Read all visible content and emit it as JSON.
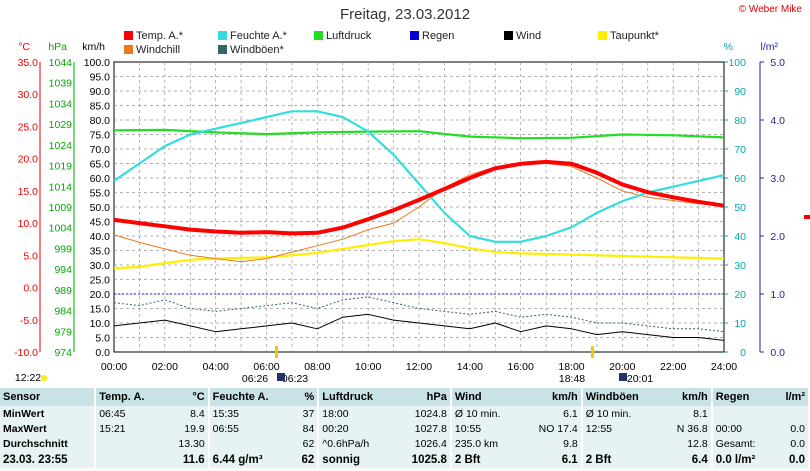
{
  "title": "Freitag, 23.03.2012",
  "copyright": "© Weber Mike",
  "legend": [
    {
      "label": "Temp. A.*",
      "color": "#ff0000"
    },
    {
      "label": "Feuchte A.*",
      "color": "#33dddd"
    },
    {
      "label": "Luftdruck",
      "color": "#22dd22"
    },
    {
      "label": "Regen",
      "color": "#0000dd"
    },
    {
      "label": "Wind",
      "color": "#000000"
    },
    {
      "label": "Taupunkt*",
      "color": "#ffee00"
    },
    {
      "label": "Windchill",
      "color": "#ee7722"
    },
    {
      "label": "Windböen*",
      "color": "#336666"
    }
  ],
  "axis_headers": {
    "temp_unit": "°C",
    "press_unit": "hPa",
    "wind_unit": "km/h",
    "hum_unit": "%",
    "rain_unit": "l/m²"
  },
  "chart_data": {
    "type": "line",
    "xlabel": "",
    "x_ticks": [
      "00:00",
      "02:00",
      "04:00",
      "06:00",
      "08:00",
      "10:00",
      "12:00",
      "14:00",
      "16:00",
      "18:00",
      "20:00",
      "22:00",
      "24:00"
    ],
    "scales": {
      "temp": {
        "ticks": [
          "35.0",
          "30.0",
          "25.0",
          "20.0",
          "15.0",
          "10.0",
          "5.0",
          "0.0",
          "-5.0",
          "-10.0"
        ],
        "min": -10,
        "max": 35
      },
      "pressure": {
        "ticks": [
          "1044",
          "1039",
          "1034",
          "1029",
          "1024",
          "1019",
          "1014",
          "1009",
          "1004",
          "999",
          "994",
          "989",
          "984",
          "979",
          "974"
        ],
        "min": 974,
        "max": 1044
      },
      "wind": {
        "ticks": [
          "100.0",
          "95.0",
          "90.0",
          "85.0",
          "80.0",
          "75.0",
          "70.0",
          "65.0",
          "60.0",
          "55.0",
          "50.0",
          "45.0",
          "40.0",
          "35.0",
          "30.0",
          "25.0",
          "20.0",
          "15.0",
          "10.0",
          "5.0",
          "0.0"
        ],
        "min": 0,
        "max": 100
      },
      "humidity": {
        "ticks": [
          "100",
          "90",
          "80",
          "70",
          "60",
          "50",
          "40",
          "30",
          "20",
          "10",
          "0"
        ],
        "min": 0,
        "max": 100
      },
      "rain": {
        "ticks": [
          "5.0",
          "4.0",
          "3.0",
          "2.0",
          "1.0",
          "0.0"
        ],
        "min": 0,
        "max": 5
      }
    },
    "series": [
      {
        "name": "Temp. A.*",
        "scale": "temp",
        "color": "#ff0000",
        "x": [
          0,
          1,
          2,
          3,
          4,
          5,
          6,
          7,
          8,
          9,
          10,
          11,
          12,
          13,
          14,
          15,
          16,
          17,
          18,
          19,
          20,
          21,
          22,
          23,
          24
        ],
        "values": [
          10.5,
          10.0,
          9.5,
          9.0,
          8.7,
          8.5,
          8.6,
          8.4,
          8.5,
          9.3,
          10.6,
          12.0,
          13.6,
          15.3,
          17.0,
          18.5,
          19.2,
          19.5,
          19.2,
          17.8,
          16.0,
          14.8,
          14.0,
          13.3,
          12.7
        ]
      },
      {
        "name": "Feuchte A.*",
        "scale": "humidity",
        "color": "#33dddd",
        "x": [
          0,
          1,
          2,
          3,
          4,
          5,
          6,
          7,
          8,
          9,
          10,
          11,
          12,
          13,
          14,
          15,
          16,
          17,
          18,
          19,
          20,
          21,
          22,
          23,
          24
        ],
        "values": [
          59,
          65,
          71,
          75,
          77,
          79,
          81,
          83,
          83,
          81,
          76,
          68,
          58,
          48,
          40,
          38,
          38,
          40,
          43,
          48,
          52,
          55,
          57,
          59,
          61
        ]
      },
      {
        "name": "Luftdruck",
        "scale": "pressure",
        "color": "#22dd22",
        "x": [
          0,
          2,
          4,
          6,
          8,
          10,
          12,
          14,
          16,
          18,
          20,
          22,
          24
        ],
        "values": [
          1027.5,
          1027.6,
          1027.0,
          1026.6,
          1027.0,
          1027.2,
          1027.3,
          1026.0,
          1025.6,
          1025.7,
          1026.5,
          1026.3,
          1025.8
        ]
      },
      {
        "name": "Taupunkt*",
        "scale": "temp",
        "color": "#ffee00",
        "x": [
          0,
          1,
          2,
          3,
          4,
          5,
          6,
          7,
          8,
          9,
          10,
          11,
          12,
          13,
          14,
          15,
          16,
          17,
          18,
          19,
          20,
          21,
          22,
          23,
          24
        ],
        "values": [
          3.0,
          3.2,
          3.8,
          4.3,
          4.5,
          4.6,
          4.7,
          5.0,
          5.4,
          6.0,
          6.6,
          7.2,
          7.5,
          6.9,
          6.1,
          5.5,
          5.3,
          5.2,
          5.1,
          5.0,
          4.9,
          4.8,
          4.7,
          4.6,
          4.5
        ]
      },
      {
        "name": "Windchill",
        "scale": "temp",
        "color": "#ee7722",
        "x": [
          0,
          1,
          2,
          3,
          4,
          5,
          6,
          7,
          8,
          9,
          10,
          11,
          12,
          13,
          14,
          15,
          16,
          17,
          18,
          19,
          20,
          21,
          22,
          23,
          24
        ],
        "values": [
          8.2,
          7.0,
          6.0,
          5.0,
          4.5,
          4.0,
          4.5,
          5.5,
          6.5,
          7.5,
          9.0,
          10.0,
          12.5,
          15.5,
          17.5,
          18.7,
          19.0,
          19.3,
          18.8,
          17.0,
          15.0,
          14.0,
          13.5,
          13.0,
          12.7
        ]
      },
      {
        "name": "Wind",
        "scale": "wind",
        "color": "#000000",
        "x": [
          0,
          1,
          2,
          3,
          4,
          5,
          6,
          7,
          8,
          9,
          10,
          11,
          12,
          13,
          14,
          15,
          16,
          17,
          18,
          19,
          20,
          21,
          22,
          23,
          24
        ],
        "values": [
          9,
          10,
          11,
          9,
          7,
          8,
          9,
          10,
          8,
          12,
          13,
          11,
          10,
          9,
          8,
          10,
          7,
          9,
          8,
          6,
          7,
          6,
          5,
          5,
          4
        ]
      },
      {
        "name": "Windböen*",
        "scale": "wind",
        "color": "#336666",
        "x": [
          0,
          1,
          2,
          3,
          4,
          5,
          6,
          7,
          8,
          9,
          10,
          11,
          12,
          13,
          14,
          15,
          16,
          17,
          18,
          19,
          20,
          21,
          22,
          23,
          24
        ],
        "values": [
          17,
          16,
          18,
          15,
          14,
          15,
          16,
          17,
          15,
          18,
          19,
          17,
          15,
          14,
          13,
          14,
          12,
          13,
          12,
          10,
          10,
          9,
          8,
          8,
          7
        ]
      }
    ]
  },
  "sun": {
    "sunrise": "06:26",
    "sunset": "18:48",
    "moonset": "06:23",
    "moonrise": "20:01",
    "left_time": "12:22"
  },
  "table": {
    "headers": [
      "Sensor",
      "Temp. A.",
      "°C",
      "Feuchte A.",
      "%",
      "Luftdruck",
      "hPa",
      "Wind",
      "km/h",
      "Windböen",
      "km/h",
      "Regen",
      "l/m²"
    ],
    "rows": [
      [
        "MinWert",
        "06:45",
        "8.4",
        "15:35",
        "37",
        "18:00",
        "1024.8",
        "Ø 10 min.",
        "6.1",
        "Ø 10 min.",
        "8.1",
        "",
        ""
      ],
      [
        "MaxWert",
        "15:21",
        "19.9",
        "06:55",
        "84",
        "00:20",
        "1027.8",
        "10:55",
        "NO 17.4",
        "12:55",
        "N 36.8",
        "00:00",
        "0.0"
      ],
      [
        "Durchschnitt",
        "",
        "13.30",
        "",
        "62",
        "^0.6hPa/h",
        "1026.4",
        "235.0 km",
        "9.8",
        "",
        "12.8",
        "Gesamt:",
        "0.0"
      ],
      [
        "23.03.  23:55",
        "",
        "11.6",
        "6.44 g/m³",
        "62",
        "sonnig",
        "1025.8",
        "2 Bft",
        "6.1",
        "2 Bft",
        "6.4",
        "0.0 l/m²",
        "0.0"
      ]
    ]
  }
}
